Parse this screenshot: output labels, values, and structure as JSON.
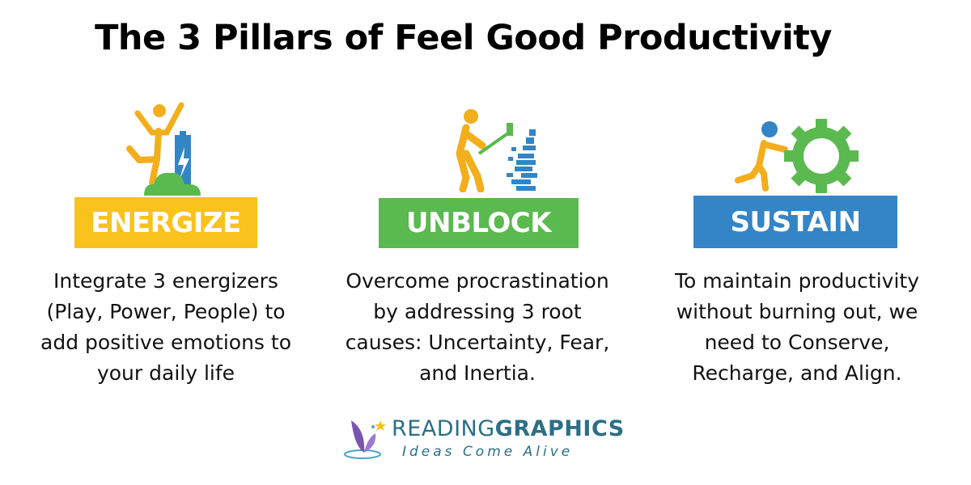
{
  "title": "The 3 Pillars of Feel Good Productivity",
  "pillars": [
    {
      "label": "ENERGIZE",
      "color": "#f9c21d",
      "icon": "jumping-person-battery-icon",
      "description": "Integrate 3 energizers (Play, Power, People) to add positive emotions to your daily life"
    },
    {
      "label": "UNBLOCK",
      "color": "#5ab94f",
      "icon": "person-breaking-wall-icon",
      "description": "Overcome procrastination by addressing 3 root causes: Uncertainty, Fear, and Inertia."
    },
    {
      "label": "SUSTAIN",
      "color": "#3385c6",
      "icon": "person-pushing-gear-icon",
      "description": "To maintain productivity without burning out, we need to Conserve, Recharge, and Align."
    }
  ],
  "logo": {
    "brand_light": "READING",
    "brand_bold": "GRAPHICS",
    "tagline": "Ideas Come Alive"
  }
}
